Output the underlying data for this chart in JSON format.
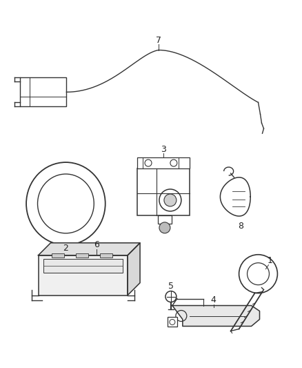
{
  "background_color": "#ffffff",
  "line_color": "#333333",
  "label_color": "#222222",
  "figsize": [
    4.38,
    5.33
  ],
  "dpi": 100
}
